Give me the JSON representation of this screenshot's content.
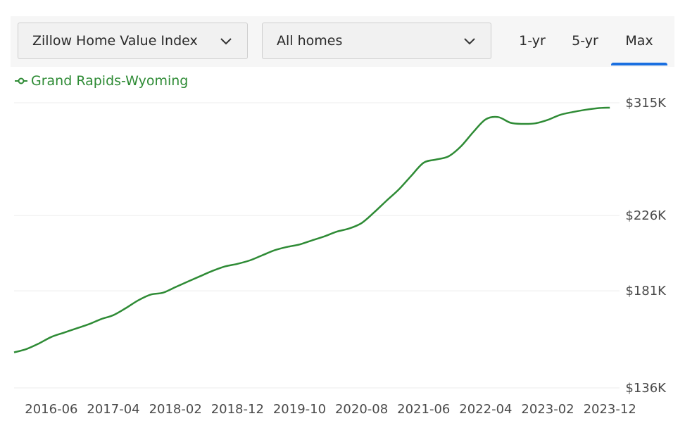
{
  "controls": {
    "metric_label": "Zillow Home Value Index",
    "home_type_label": "All homes",
    "range_tabs": [
      "1-yr",
      "5-yr",
      "Max"
    ],
    "selected_range": "Max"
  },
  "colors": {
    "series": "#2e8b35",
    "accent": "#1a6fe0"
  },
  "chart_data": {
    "type": "line",
    "legend_position": "top-left",
    "grid": true,
    "y_tick_labels": [
      "$315K",
      "$226K",
      "$181K",
      "$136K"
    ],
    "y_tick_values": [
      315,
      226,
      181,
      136
    ],
    "ylim": [
      136,
      315
    ],
    "y_scale": "log",
    "y_unit": "thousand USD",
    "x_tick_labels": [
      "2016-06",
      "2017-04",
      "2018-02",
      "2018-12",
      "2019-10",
      "2020-08",
      "2021-06",
      "2022-04",
      "2023-02",
      "2023-12"
    ],
    "xlim": [
      "2015-12",
      "2024-01"
    ],
    "series": [
      {
        "name": "Grand Rapids-Wyoming",
        "color": "#2e8b35",
        "points": [
          [
            "2015-12",
            151
          ],
          [
            "2016-02",
            152.5
          ],
          [
            "2016-04",
            155
          ],
          [
            "2016-06",
            158
          ],
          [
            "2016-08",
            160
          ],
          [
            "2016-10",
            162
          ],
          [
            "2016-12",
            164
          ],
          [
            "2017-02",
            166.5
          ],
          [
            "2017-04",
            168.5
          ],
          [
            "2017-06",
            172
          ],
          [
            "2017-08",
            176
          ],
          [
            "2017-10",
            179
          ],
          [
            "2017-12",
            180
          ],
          [
            "2018-02",
            183
          ],
          [
            "2018-04",
            186
          ],
          [
            "2018-06",
            189
          ],
          [
            "2018-08",
            192
          ],
          [
            "2018-10",
            194.5
          ],
          [
            "2018-12",
            196
          ],
          [
            "2019-02",
            198
          ],
          [
            "2019-04",
            201
          ],
          [
            "2019-06",
            204
          ],
          [
            "2019-08",
            206
          ],
          [
            "2019-10",
            207.5
          ],
          [
            "2019-12",
            210
          ],
          [
            "2020-02",
            212.5
          ],
          [
            "2020-04",
            215.5
          ],
          [
            "2020-06",
            217.5
          ],
          [
            "2020-08",
            221
          ],
          [
            "2020-10",
            228
          ],
          [
            "2020-12",
            236
          ],
          [
            "2021-02",
            244
          ],
          [
            "2021-04",
            254
          ],
          [
            "2021-06",
            264
          ],
          [
            "2021-08",
            266.5
          ],
          [
            "2021-10",
            269
          ],
          [
            "2021-12",
            277
          ],
          [
            "2022-02",
            289
          ],
          [
            "2022-04",
            300
          ],
          [
            "2022-06",
            302
          ],
          [
            "2022-08",
            297
          ],
          [
            "2022-10",
            296
          ],
          [
            "2022-12",
            296.5
          ],
          [
            "2023-02",
            299.5
          ],
          [
            "2023-04",
            304
          ],
          [
            "2023-06",
            306.5
          ],
          [
            "2023-08",
            308.5
          ],
          [
            "2023-10",
            310
          ],
          [
            "2023-12",
            310.5
          ]
        ]
      }
    ]
  }
}
